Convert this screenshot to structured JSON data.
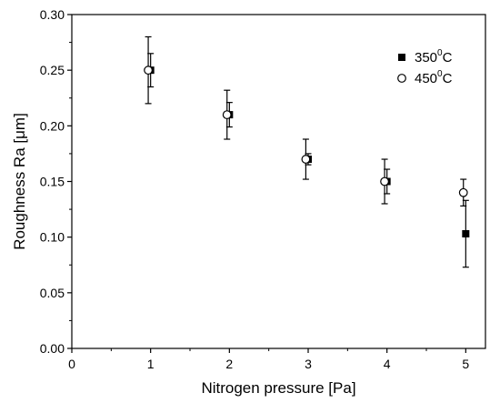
{
  "chart_data": {
    "type": "scatter",
    "title": "",
    "xlabel": "Nitrogen pressure [Pa]",
    "ylabel": "Roughness Ra [μm]",
    "xlim": [
      0,
      5.25
    ],
    "ylim": [
      0,
      0.3
    ],
    "x_ticks": [
      0,
      1,
      2,
      3,
      4,
      5
    ],
    "x_tick_labels": [
      "0",
      "1",
      "2",
      "3",
      "4",
      "5"
    ],
    "y_ticks": [
      0,
      0.05,
      0.1,
      0.15,
      0.2,
      0.25,
      0.3
    ],
    "y_tick_labels": [
      "0.00",
      "0.05",
      "0.10",
      "0.15",
      "0.20",
      "0.25",
      "0.30"
    ],
    "grid": false,
    "legend_position": "top-right",
    "series": [
      {
        "name_base": "350",
        "name_sup": "0",
        "name_unit": "C",
        "marker": "filled-square",
        "color": "#000000",
        "points": [
          {
            "x": 1,
            "y": 0.25,
            "err": 0.015
          },
          {
            "x": 2,
            "y": 0.21,
            "err": 0.011
          },
          {
            "x": 3,
            "y": 0.17,
            "err": 0.005
          },
          {
            "x": 4,
            "y": 0.15,
            "err": 0.011
          },
          {
            "x": 5,
            "y": 0.103,
            "err": 0.03
          }
        ]
      },
      {
        "name_base": "450",
        "name_sup": "0",
        "name_unit": "C",
        "marker": "open-circle",
        "color": "#000000",
        "points": [
          {
            "x": 0.97,
            "y": 0.25,
            "err": 0.03
          },
          {
            "x": 1.97,
            "y": 0.21,
            "err": 0.022
          },
          {
            "x": 2.97,
            "y": 0.17,
            "err": 0.018
          },
          {
            "x": 3.97,
            "y": 0.15,
            "err": 0.02
          },
          {
            "x": 4.97,
            "y": 0.14,
            "err": 0.012
          }
        ]
      }
    ]
  }
}
